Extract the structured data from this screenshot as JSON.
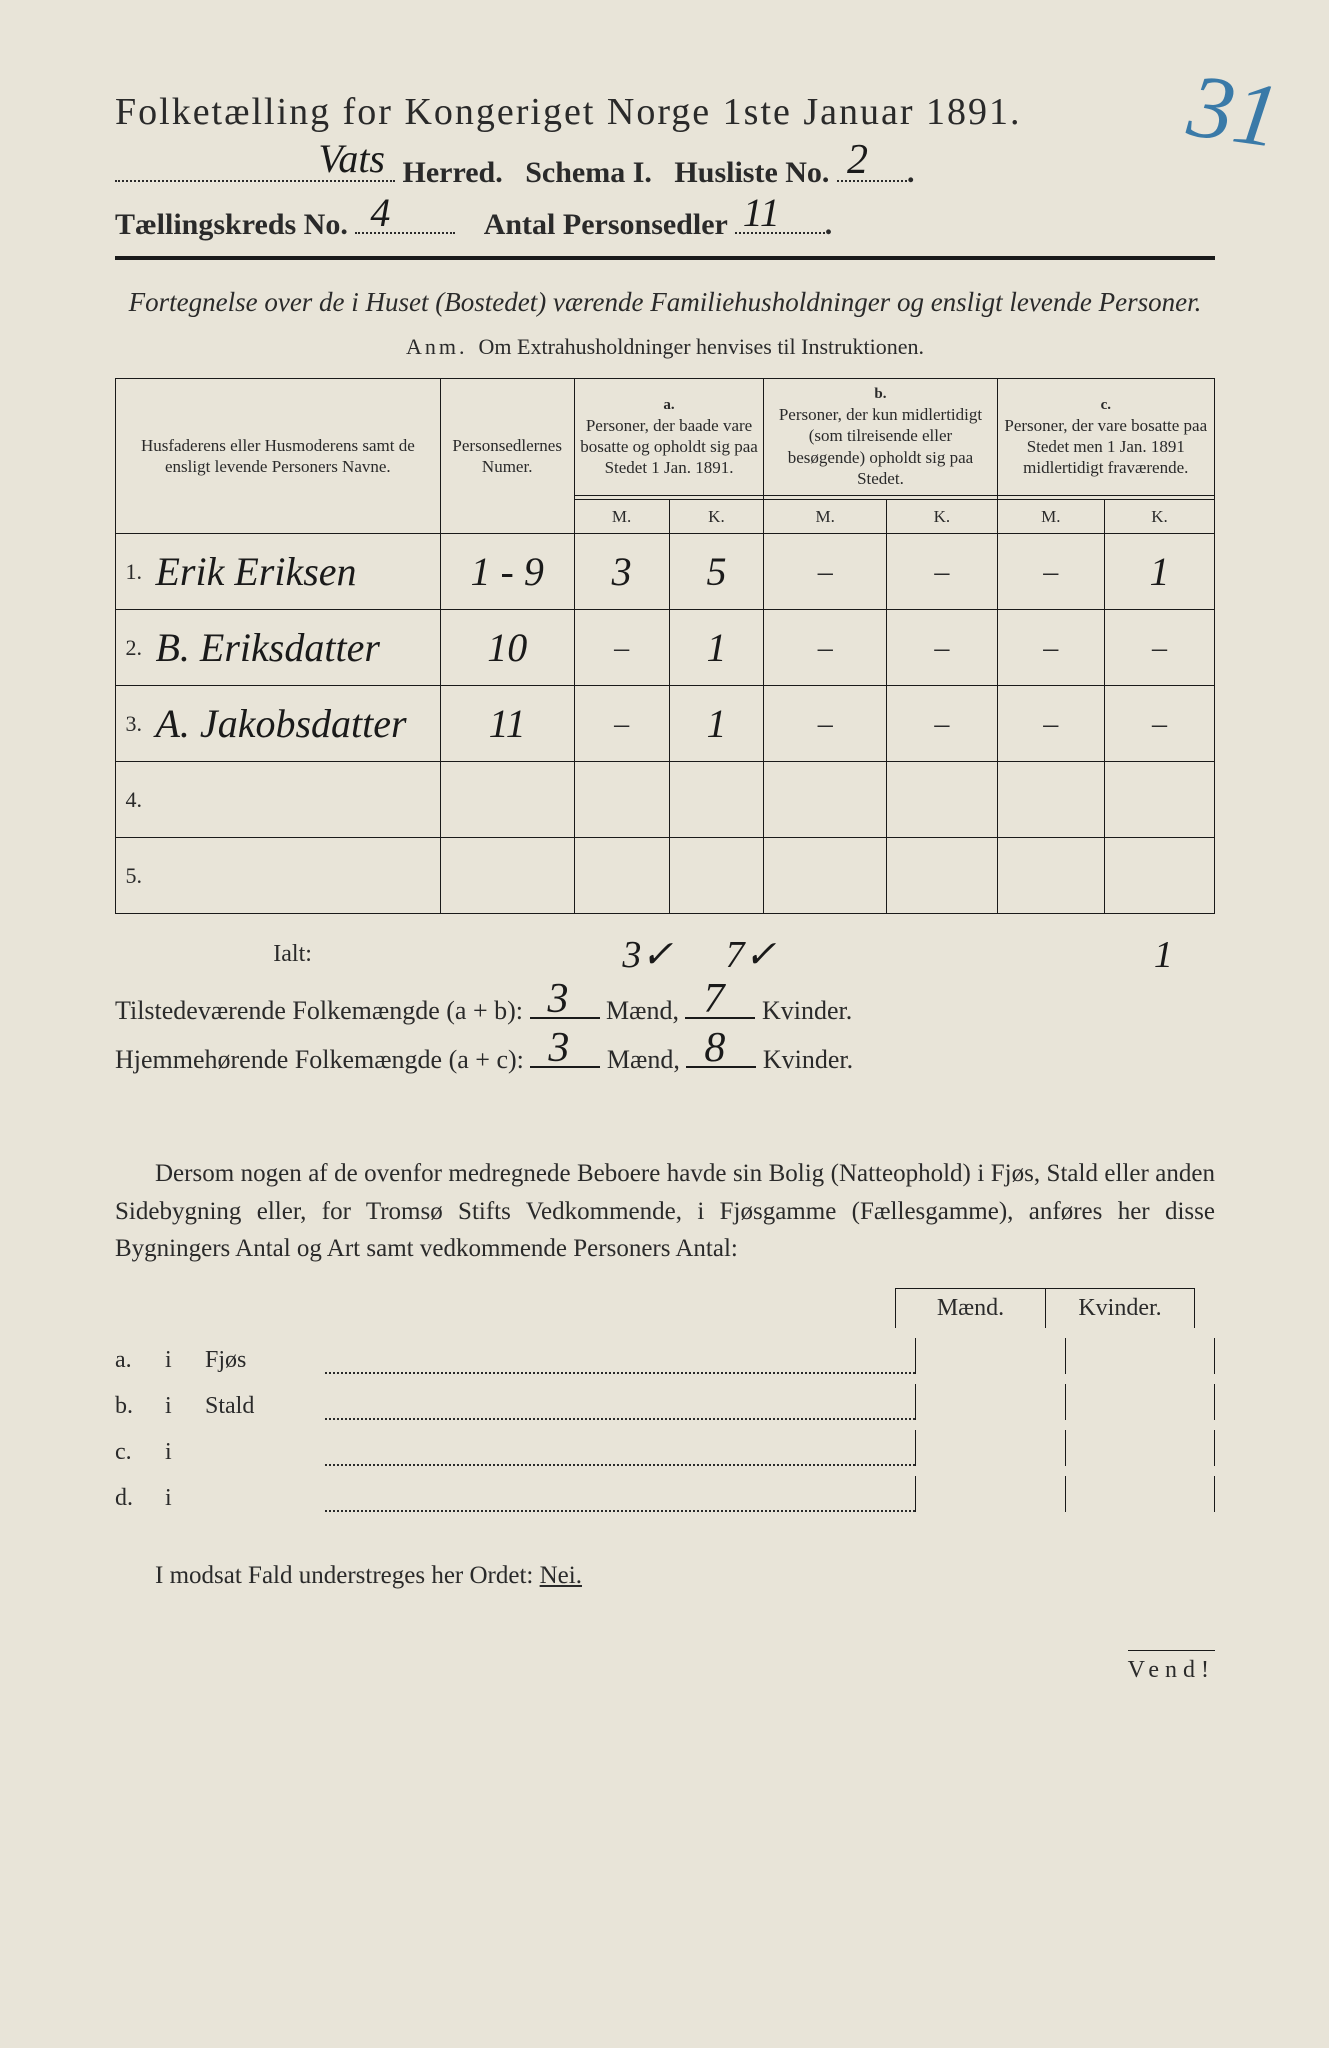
{
  "colors": {
    "paper": "#e8e4d8",
    "ink": "#2a2a2a",
    "pencil_blue": "#3a7aa8",
    "handwriting": "#1a1a1a"
  },
  "corner_annotation": "31",
  "title": "Folketælling for Kongeriget Norge 1ste Januar 1891.",
  "herred_line": {
    "herred_value": "Vats",
    "herred_label": "Herred.",
    "schema_label": "Schema I.",
    "husliste_label": "Husliste No.",
    "husliste_value": "2"
  },
  "kreds_line": {
    "kreds_label": "Tællingskreds No.",
    "kreds_value": "4",
    "antal_label": "Antal Personsedler",
    "antal_value": "11"
  },
  "fortegnelse": "Fortegnelse over de i Huset (Bostedet) værende Familiehusholdninger og ensligt levende Personer.",
  "anm_prefix": "Anm.",
  "anm_text": "Om Extrahusholdninger henvises til Instruktionen.",
  "table": {
    "columns": {
      "name": "Husfaderens eller Husmoderens samt de ensligt levende Personers Navne.",
      "numer": "Personsedlernes Numer.",
      "a_label": "a.",
      "a_text": "Personer, der baade vare bosatte og opholdt sig paa Stedet 1 Jan. 1891.",
      "b_label": "b.",
      "b_text": "Personer, der kun midlertidigt (som tilreisende eller besøgende) opholdt sig paa Stedet.",
      "c_label": "c.",
      "c_text": "Personer, der vare bosatte paa Stedet men 1 Jan. 1891 midlertidigt fraværende.",
      "M": "M.",
      "K": "K."
    },
    "rows": [
      {
        "n": "1.",
        "name": "Erik Eriksen",
        "numer": "1 - 9",
        "aM": "3",
        "aK": "5",
        "bM": "–",
        "bK": "–",
        "cM": "–",
        "cK": "1"
      },
      {
        "n": "2.",
        "name": "B. Eriksdatter",
        "numer": "10",
        "aM": "–",
        "aK": "1",
        "bM": "–",
        "bK": "–",
        "cM": "–",
        "cK": "–"
      },
      {
        "n": "3.",
        "name": "A. Jakobsdatter",
        "numer": "11",
        "aM": "–",
        "aK": "1",
        "bM": "–",
        "bK": "–",
        "cM": "–",
        "cK": "–"
      },
      {
        "n": "4.",
        "name": "",
        "numer": "",
        "aM": "",
        "aK": "",
        "bM": "",
        "bK": "",
        "cM": "",
        "cK": ""
      },
      {
        "n": "5.",
        "name": "",
        "numer": "",
        "aM": "",
        "aK": "",
        "bM": "",
        "bK": "",
        "cM": "",
        "cK": ""
      }
    ],
    "ialt_label": "Ialt:",
    "ialt": {
      "aM": "3✓",
      "aK": "7✓",
      "cK": "1"
    }
  },
  "summary": {
    "line1_label": "Tilstedeværende Folkemængde (a + b):",
    "line1_m": "3",
    "maend": "Mænd,",
    "line1_k": "7",
    "kvinder": "Kvinder.",
    "line2_label": "Hjemmehørende Folkemængde (a + c):",
    "line2_m": "3",
    "line2_k": "8"
  },
  "dersom": "Dersom nogen af de ovenfor medregnede Beboere havde sin Bolig (Natteophold) i Fjøs, Stald eller anden Sidebygning eller, for Tromsø Stifts Vedkommende, i Fjøsgamme (Fællesgamme), anføres her disse Bygningers Antal og Art samt vedkommende Personers Antal:",
  "mk_header": {
    "m": "Mænd.",
    "k": "Kvinder."
  },
  "buildings": [
    {
      "letter": "a.",
      "i": "i",
      "name": "Fjøs"
    },
    {
      "letter": "b.",
      "i": "i",
      "name": "Stald"
    },
    {
      "letter": "c.",
      "i": "i",
      "name": ""
    },
    {
      "letter": "d.",
      "i": "i",
      "name": ""
    }
  ],
  "modsat": "I modsat Fald understreges her Ordet:",
  "nei": "Nei.",
  "vend": "Vend!"
}
